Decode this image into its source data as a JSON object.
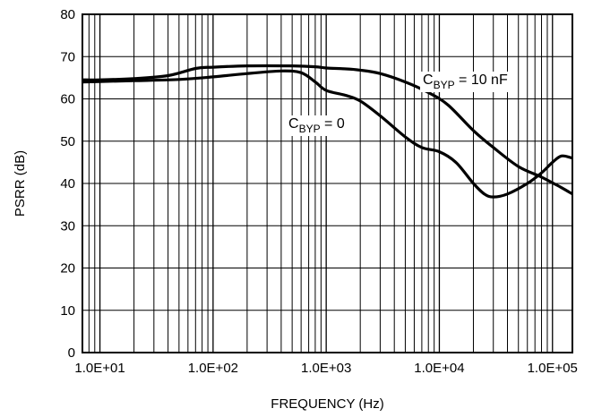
{
  "chart_data": {
    "type": "line",
    "title": "",
    "xlabel": "FREQUENCY (Hz)",
    "ylabel": "PSRR (dB)",
    "x_scale": "log",
    "xlim": [
      7,
      150000
    ],
    "ylim": [
      0,
      80
    ],
    "grid": true,
    "x_ticks": [
      10,
      100,
      1000,
      10000,
      100000
    ],
    "x_tick_labels": [
      "1.0E+01",
      "1.0E+02",
      "1.0E+03",
      "1.0E+04",
      "1.0E+05"
    ],
    "y_ticks": [
      0,
      10,
      20,
      30,
      40,
      50,
      60,
      70,
      80
    ],
    "y_tick_labels": [
      "0",
      "10",
      "20",
      "30",
      "40",
      "50",
      "60",
      "70",
      "80"
    ],
    "series": [
      {
        "name_main": "C",
        "name_sub": "BYP",
        "name_tail": " = 10 nF",
        "x": [
          7,
          10,
          20,
          40,
          70,
          100,
          200,
          500,
          800,
          1000,
          1500,
          2000,
          3000,
          5000,
          8000,
          12000,
          20000,
          30000,
          50000,
          80000,
          120000,
          150000
        ],
        "y": [
          64.5,
          64.5,
          64.8,
          65.5,
          67.2,
          67.5,
          67.8,
          67.8,
          67.6,
          67.3,
          67.1,
          66.8,
          66,
          64,
          61.5,
          58.5,
          52.5,
          48.5,
          44,
          41.5,
          39,
          37.5
        ]
      },
      {
        "name_main": "C",
        "name_sub": "BYP",
        "name_tail": " = 0",
        "x": [
          7,
          10,
          20,
          50,
          100,
          200,
          400,
          600,
          800,
          1000,
          1500,
          2000,
          3000,
          5000,
          7000,
          10000,
          14000,
          20000,
          25000,
          30000,
          40000,
          60000,
          80000,
          100000,
          120000,
          150000
        ],
        "y": [
          64,
          64.1,
          64.3,
          64.6,
          65.2,
          66,
          66.6,
          66.2,
          64,
          62,
          60.8,
          59.5,
          56,
          51,
          48.5,
          47.5,
          45,
          40,
          37.5,
          36.8,
          37.5,
          40,
          42.5,
          45,
          46.5,
          46
        ]
      }
    ]
  }
}
